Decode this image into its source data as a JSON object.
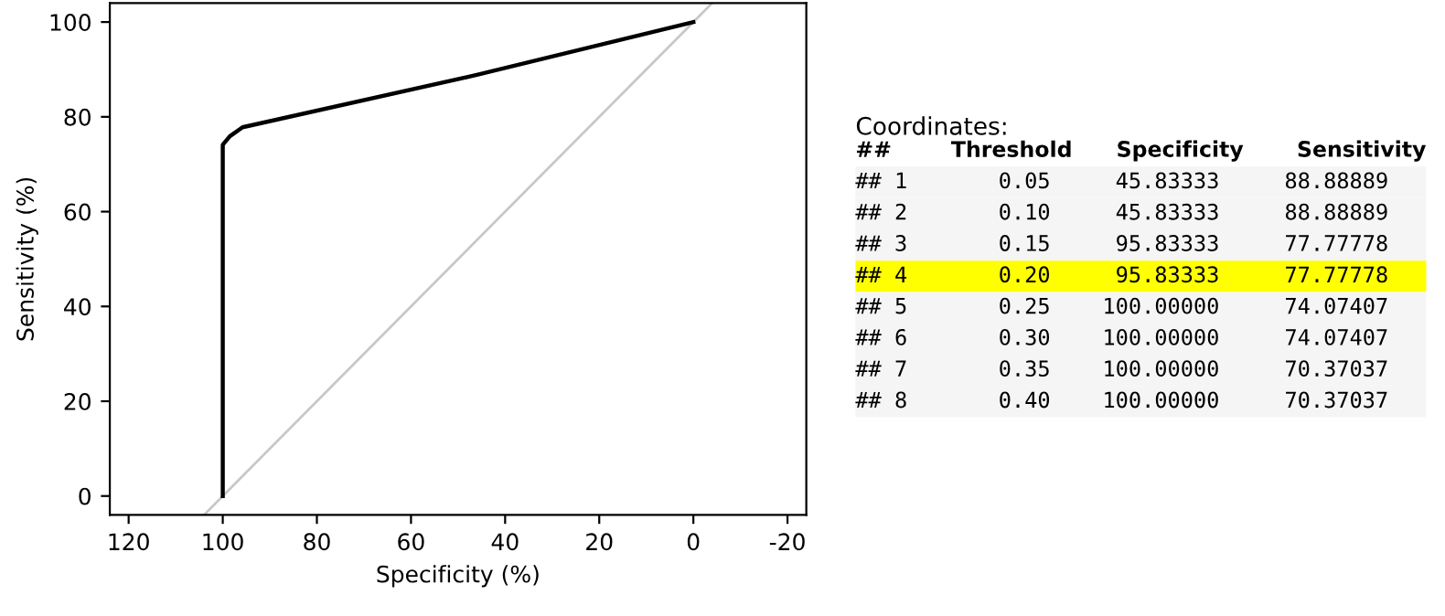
{
  "chart_data": [
    {
      "type": "line",
      "xlabel": "Specificity (%)",
      "ylabel": "Sensitivity (%)",
      "xlim": [
        124,
        -24
      ],
      "ylim": [
        -4,
        104
      ],
      "xticks": [
        120,
        100,
        80,
        60,
        40,
        20,
        0,
        -20
      ],
      "yticks": [
        0,
        20,
        40,
        60,
        80,
        100
      ],
      "grid": false,
      "series": [
        {
          "color": "#c8c8c8",
          "x": [
            104,
            -4
          ],
          "values": [
            -4,
            104
          ]
        },
        {
          "color": "#000000",
          "x": [
            100,
            100,
            100,
            98.5,
            95.8,
            45.8,
            0
          ],
          "values": [
            0,
            70.4,
            74.1,
            75.9,
            77.8,
            88.9,
            100
          ]
        }
      ]
    },
    {
      "type": "other",
      "title": "Coordinates:",
      "annotations": [
        "## Threshold Specificity Sensitivity",
        "## 1 0.05 45.83333 88.88889",
        "## 2 0.10 45.83333 88.88889",
        "## 3 0.15 95.83333 77.77778",
        "## 4 0.20 95.83333 77.77778",
        "## 5 0.25 100.00000 74.07407",
        "## 6 0.30 100.00000 74.07407",
        "## 7 0.35 100.00000 70.37037",
        "## 8 0.40 100.00000 70.37037"
      ],
      "colors": [
        null,
        "#f5f5f5",
        "#f5f5f5",
        "#f5f5f5",
        "#ffff00",
        "#f5f5f5",
        "#f5f5f5",
        "#f5f5f5",
        "#f5f5f5"
      ]
    }
  ]
}
